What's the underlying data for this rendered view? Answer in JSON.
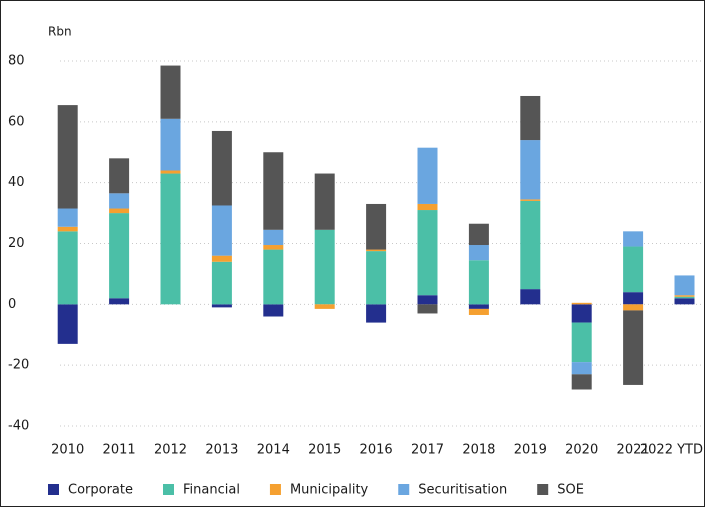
{
  "chart_data": {
    "type": "stacked_bar",
    "y_label": "Rbn",
    "categories": [
      "2010",
      "2011",
      "2012",
      "2013",
      "2014",
      "2015",
      "2016",
      "2017",
      "2018",
      "2019",
      "2020",
      "2021",
      "2022 YTD"
    ],
    "series": [
      {
        "name": "Corporate",
        "color": "#232f8e",
        "values": [
          -13,
          2,
          0,
          -1,
          -4,
          0,
          -6,
          3,
          -1.5,
          5,
          -6,
          4,
          2
        ]
      },
      {
        "name": "Financial",
        "color": "#4bbfa7",
        "values": [
          24,
          28,
          43,
          14,
          18,
          24.5,
          17.5,
          28,
          14.5,
          29,
          -13,
          15,
          0.5
        ]
      },
      {
        "name": "Municipality",
        "color": "#f5a030",
        "values": [
          1.5,
          1.5,
          1,
          2,
          1.5,
          -1.5,
          0.5,
          2,
          -2,
          0.5,
          0.5,
          -2,
          0.5
        ]
      },
      {
        "name": "Securitisation",
        "color": "#6aa6e0",
        "values": [
          6,
          5,
          17,
          16.5,
          5,
          0,
          0,
          18.5,
          5,
          19.5,
          -4,
          5,
          6.5
        ]
      },
      {
        "name": "SOE",
        "color": "#555555",
        "values": [
          34,
          11.5,
          17.5,
          24.5,
          25.5,
          18.5,
          15,
          -3,
          7,
          14.5,
          -5,
          -24.5,
          0
        ]
      }
    ],
    "ylim": [
      -40,
      80
    ],
    "yticks": [
      -40,
      -20,
      0,
      20,
      40,
      60,
      80
    ],
    "grid": true,
    "legend": "bottom"
  }
}
